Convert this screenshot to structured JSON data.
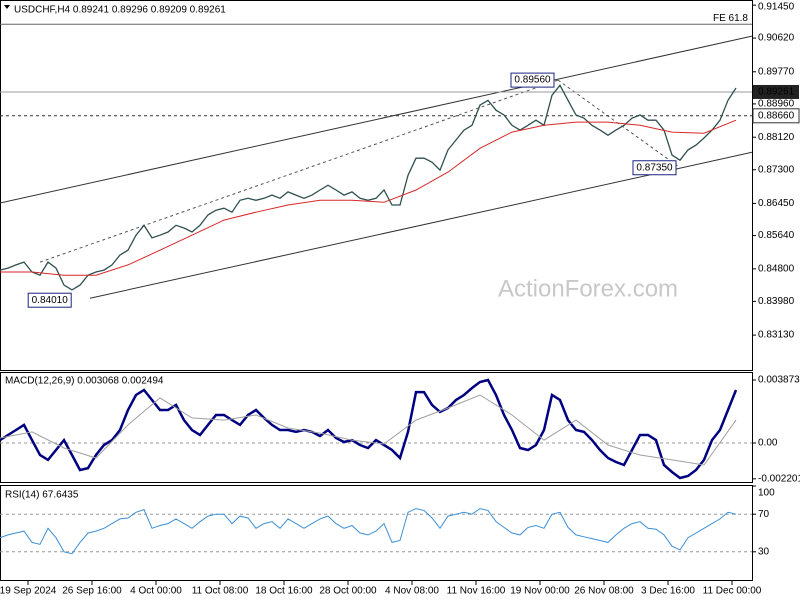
{
  "chart_data": [
    {
      "type": "line",
      "title": "USDCHF,H4  0.89241 0.89296 0.89209 0.89261",
      "watermark": "ActionForex.com",
      "xlim": [
        0,
        94
      ],
      "ylim": [
        0.8225,
        0.9158
      ],
      "yticks": [
        {
          "value": 0.9145,
          "label": "0.91450"
        },
        {
          "value": 0.9062,
          "label": "0.90620"
        },
        {
          "value": 0.8977,
          "label": "0.89770"
        },
        {
          "value": 0.8896,
          "label": "0.88960"
        },
        {
          "value": 0.8812,
          "label": "0.88120"
        },
        {
          "value": 0.873,
          "label": "0.87300"
        },
        {
          "value": 0.8645,
          "label": "0.86450"
        },
        {
          "value": 0.8564,
          "label": "0.85640"
        },
        {
          "value": 0.848,
          "label": "0.84800"
        },
        {
          "value": 0.8398,
          "label": "0.83980"
        },
        {
          "value": 0.8313,
          "label": "0.83130"
        }
      ],
      "xticks": [
        {
          "value": 3.5,
          "label": "19 Sep 2024"
        },
        {
          "value": 11.5,
          "label": "26 Sep 16:00"
        },
        {
          "value": 19.5,
          "label": "4 Oct 00:00"
        },
        {
          "value": 27.5,
          "label": "11 Oct 08:00"
        },
        {
          "value": 35.5,
          "label": "18 Oct 16:00"
        },
        {
          "value": 43.5,
          "label": "28 Oct 00:00"
        },
        {
          "value": 51.5,
          "label": "4 Nov 08:00"
        },
        {
          "value": 59.5,
          "label": "11 Nov 16:00"
        },
        {
          "value": 67.5,
          "label": "19 Nov 00:00"
        },
        {
          "value": 75.5,
          "label": "26 Nov 08:00"
        },
        {
          "value": 83.5,
          "label": "3 Dec 16:00"
        },
        {
          "value": 91.5,
          "label": "11 Dec 00:00"
        }
      ],
      "x": [
        0,
        1,
        2,
        3,
        4,
        5,
        6,
        7,
        8,
        9,
        10,
        11,
        12,
        13,
        14,
        15,
        16,
        17,
        18,
        19,
        20,
        21,
        22,
        23,
        24,
        25,
        26,
        27,
        28,
        29,
        30,
        31,
        32,
        33,
        34,
        35,
        36,
        37,
        38,
        39,
        40,
        41,
        42,
        43,
        44,
        45,
        46,
        47,
        48,
        49,
        50,
        51,
        52,
        53,
        54,
        55,
        56,
        57,
        58,
        59,
        60,
        61,
        62,
        63,
        64,
        65,
        66,
        67,
        68,
        69,
        70,
        71,
        72,
        73,
        74,
        75,
        76,
        77,
        78,
        79,
        80,
        81,
        82,
        83,
        84,
        85,
        86,
        87,
        88,
        89,
        90,
        91,
        92
      ],
      "series": [
        {
          "name": "USDCHF",
          "color": "#2f4f4f",
          "values": [
            0.8477,
            0.8482,
            0.849,
            0.8497,
            0.8472,
            0.8464,
            0.8497,
            0.8482,
            0.8439,
            0.8427,
            0.8439,
            0.8464,
            0.8472,
            0.8477,
            0.849,
            0.8515,
            0.8527,
            0.8565,
            0.859,
            0.8558,
            0.8565,
            0.8573,
            0.859,
            0.8583,
            0.8573,
            0.859,
            0.8616,
            0.8628,
            0.8633,
            0.8623,
            0.8653,
            0.8658,
            0.8653,
            0.8658,
            0.8666,
            0.8658,
            0.8674,
            0.8666,
            0.8658,
            0.8666,
            0.8679,
            0.8691,
            0.8679,
            0.8666,
            0.8674,
            0.8658,
            0.8653,
            0.8658,
            0.8679,
            0.8641,
            0.8641,
            0.8716,
            0.8759,
            0.8759,
            0.8749,
            0.8729,
            0.878,
            0.8805,
            0.883,
            0.8842,
            0.8893,
            0.8905,
            0.888,
            0.8868,
            0.8842,
            0.883,
            0.8842,
            0.8855,
            0.8842,
            0.8918,
            0.8943,
            0.8905,
            0.8868,
            0.886,
            0.8842,
            0.883,
            0.8817,
            0.883,
            0.8842,
            0.886,
            0.8868,
            0.8855,
            0.8855,
            0.883,
            0.8767,
            0.8754,
            0.878,
            0.8792,
            0.881,
            0.883,
            0.8855,
            0.8905,
            0.8936
          ]
        },
        {
          "name": "MA",
          "color": "#d62728",
          "x": [
            0,
            4,
            8,
            12,
            16,
            20,
            24,
            28,
            32,
            36,
            40,
            44,
            48,
            52,
            56,
            60,
            64,
            68,
            72,
            76,
            80,
            84,
            88,
            92
          ],
          "values": [
            0.8472,
            0.8472,
            0.8464,
            0.8464,
            0.849,
            0.8527,
            0.8565,
            0.8603,
            0.8623,
            0.8641,
            0.8653,
            0.8653,
            0.8648,
            0.8679,
            0.8724,
            0.8784,
            0.8825,
            0.8842,
            0.885,
            0.885,
            0.8842,
            0.8825,
            0.8822,
            0.8855
          ]
        }
      ],
      "channel": [
        {
          "x": [
            0,
            94
          ],
          "values": [
            0.8646,
            0.9067
          ]
        },
        {
          "x": [
            11.25,
            94
          ],
          "values": [
            0.8406,
            0.8774
          ]
        }
      ],
      "dashed_lines": [
        {
          "x": [
            5,
            69.75
          ],
          "values": [
            0.8497,
            0.8956
          ]
        },
        {
          "x": [
            69.75,
            85
          ],
          "values": [
            0.8956,
            0.8735
          ]
        }
      ],
      "annotations": [
        {
          "x": 9.4,
          "value": 0.8401,
          "label": "0.84010"
        },
        {
          "x": 69.75,
          "value": 0.8956,
          "label": "0.89560"
        },
        {
          "x": 85,
          "value": 0.8735,
          "label": "0.87350"
        }
      ],
      "fe_line": {
        "value": 0.9097,
        "label": "FE 61.8"
      },
      "last_price": {
        "value": 0.89261,
        "label": "0.89261"
      },
      "dashed_level": {
        "value": 0.8866,
        "label": "0.88660"
      }
    },
    {
      "type": "line",
      "title": "MACD(12,26,9) 0.003068 0.002494",
      "ylim": [
        -0.002397,
        0.004364
      ],
      "yticks": [
        0.003873,
        {
          "value": 0,
          "label": "0.00"
        },
        -0.002201
      ],
      "levels": [
        0
      ],
      "series": [
        {
          "name": "MACD",
          "color": "#000080",
          "values": [
            0.00018,
            0.00049,
            0.0008,
            0.00111,
            0.00018,
            -0.00074,
            -0.00104,
            -0.00043,
            0.00018,
            -0.00074,
            -0.00166,
            -0.00154,
            -0.00074,
            -0.00012,
            0.00018,
            0.0008,
            0.00203,
            0.00295,
            0.00326,
            0.00264,
            0.00203,
            0.00203,
            0.00234,
            0.00141,
            0.0008,
            0.00049,
            0.00111,
            0.00172,
            0.00172,
            0.00141,
            0.00111,
            0.00172,
            0.00203,
            0.00154,
            0.00111,
            0.0008,
            0.0008,
            0.00068,
            0.0008,
            0.00068,
            0.00043,
            0.0008,
            0.00031,
            6e-05,
            0.00018,
            -0.00012,
            -0.00031,
            0.00018,
            -0.00012,
            -0.00043,
            -0.00092,
            0.00068,
            0.00313,
            0.00313,
            0.00234,
            0.00191,
            0.00215,
            0.00264,
            0.00295,
            0.00338,
            0.00375,
            0.00387,
            0.00295,
            0.00172,
            0.0008,
            -0.00031,
            -0.00043,
            -0.00012,
            0.0008,
            0.00295,
            0.00264,
            0.00141,
            0.0008,
            0.00068,
            0.00018,
            -0.00043,
            -0.00092,
            -0.00117,
            -0.00135,
            -0.00043,
            0.00049,
            0.00049,
            0.00018,
            -0.00135,
            -0.00178,
            -0.00215,
            -0.00203,
            -0.00166,
            -0.00104,
            0.00018,
            0.0008,
            0.00203,
            0.00326
          ]
        },
        {
          "name": "Signal",
          "color": "#a0a0a0",
          "x": [
            0,
            4,
            8,
            12,
            16,
            20,
            24,
            28,
            32,
            36,
            40,
            44,
            48,
            52,
            56,
            60,
            64,
            68,
            72,
            76,
            80,
            84,
            88,
            92
          ],
          "values": [
            0.00031,
            0.00068,
            -0.00031,
            -0.00092,
            0.00111,
            0.00277,
            0.00154,
            0.00141,
            0.00172,
            0.00092,
            0.00061,
            0.00018,
            -6e-05,
            0.00141,
            0.00215,
            0.00295,
            0.00172,
            0.00018,
            0.00141,
            -0.00012,
            -0.00074,
            -0.00104,
            -0.00135,
            0.00141
          ]
        }
      ]
    },
    {
      "type": "line",
      "title": "RSI(14) 67.6435",
      "ylim": [
        0,
        100
      ],
      "yticks": [
        100,
        70,
        30
      ],
      "levels": [
        70,
        30
      ],
      "series": [
        {
          "name": "RSI",
          "color": "#3b8fd6",
          "values": [
            45,
            48,
            50,
            52,
            40,
            38,
            55,
            45,
            30,
            28,
            40,
            50,
            52,
            55,
            60,
            65,
            66,
            72,
            75,
            55,
            58,
            60,
            65,
            60,
            55,
            62,
            68,
            70,
            70,
            60,
            68,
            66,
            55,
            60,
            62,
            55,
            65,
            60,
            55,
            60,
            65,
            68,
            60,
            55,
            58,
            50,
            48,
            52,
            60,
            40,
            42,
            72,
            76,
            74,
            66,
            55,
            68,
            70,
            72,
            70,
            76,
            74,
            62,
            56,
            50,
            48,
            56,
            58,
            55,
            70,
            72,
            56,
            48,
            46,
            44,
            42,
            40,
            48,
            55,
            60,
            62,
            55,
            54,
            48,
            36,
            32,
            45,
            50,
            55,
            60,
            65,
            72,
            70
          ]
        }
      ]
    }
  ]
}
